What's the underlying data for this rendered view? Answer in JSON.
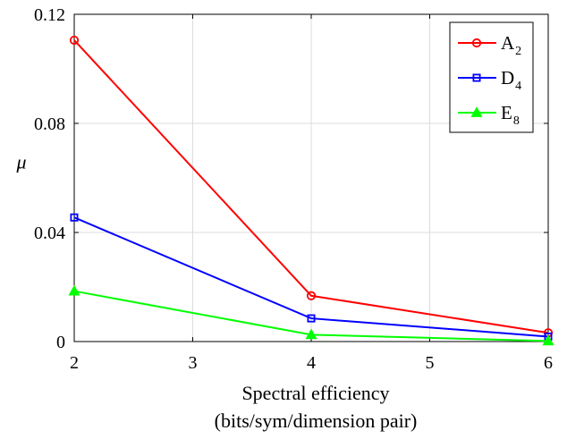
{
  "chart_data": {
    "type": "line",
    "title": "",
    "xlabel_lines": [
      "Spectral efficiency",
      "(bits/sym/dimension pair)"
    ],
    "ylabel": "μ",
    "xlim": [
      2,
      6
    ],
    "ylim": [
      0,
      0.12
    ],
    "xticks": [
      2,
      3,
      4,
      5,
      6
    ],
    "xtick_labels": [
      "2",
      "3",
      "4",
      "5",
      "6"
    ],
    "yticks": [
      0,
      0.04,
      0.08,
      0.12
    ],
    "ytick_labels": [
      "0",
      "0.04",
      "0.08",
      "0.12"
    ],
    "grid": true,
    "legend_position": "top-right",
    "series": [
      {
        "name": "A",
        "subscript": "2",
        "color": "#ff0000",
        "marker": "circle",
        "x": [
          2,
          4,
          6
        ],
        "y": [
          0.1105,
          0.0168,
          0.0032
        ]
      },
      {
        "name": "D",
        "subscript": "4",
        "color": "#0000ff",
        "marker": "square",
        "x": [
          2,
          4,
          6
        ],
        "y": [
          0.0455,
          0.0085,
          0.0018
        ]
      },
      {
        "name": "E",
        "subscript": "8",
        "color": "#00ff00",
        "marker": "triangle",
        "x": [
          2,
          4,
          6
        ],
        "y": [
          0.0185,
          0.0025,
          0.0002
        ]
      }
    ]
  }
}
